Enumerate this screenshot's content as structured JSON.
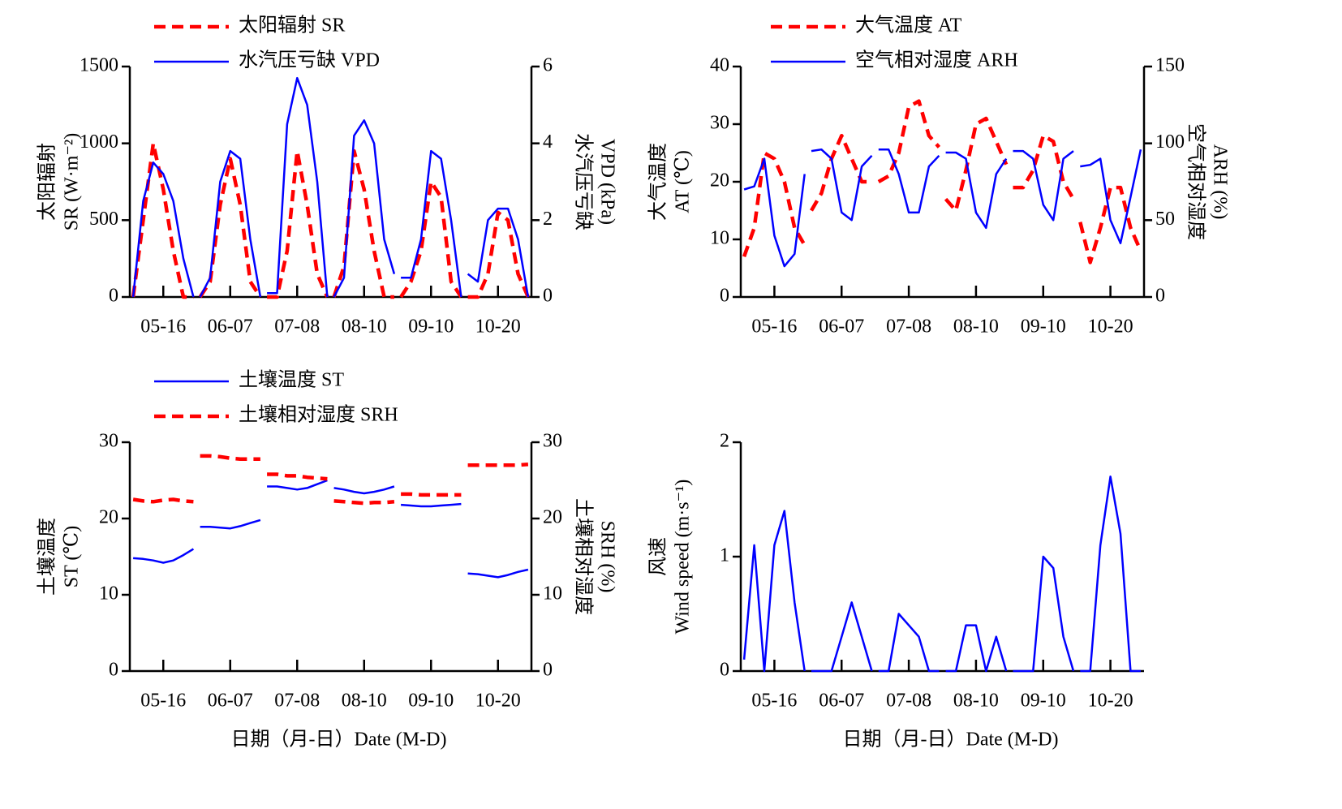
{
  "chart_data": [
    {
      "type": "line",
      "ylabel": [
        "太阳辐射",
        "SR (W·m⁻²)"
      ],
      "y2label": [
        "水汽压亏缺",
        "VPD (kPa)"
      ],
      "xlim": [
        0,
        6
      ],
      "xticks": [
        {
          "value": 0.5,
          "label": "05-16"
        },
        {
          "value": 1.5,
          "label": "06-07"
        },
        {
          "value": 2.5,
          "label": "07-08"
        },
        {
          "value": 3.5,
          "label": "08-10"
        },
        {
          "value": 4.5,
          "label": "09-10"
        },
        {
          "value": 5.5,
          "label": "10-20"
        }
      ],
      "ylim": [
        0,
        1500
      ],
      "yticks": [
        0,
        500,
        1000,
        1500
      ],
      "y2lim": [
        0,
        6
      ],
      "y2ticks": [
        0,
        2,
        4,
        6
      ],
      "x": [
        0.05,
        0.2,
        0.35,
        0.5,
        0.65,
        0.8,
        0.95,
        1,
        1.05,
        1.2,
        1.35,
        1.5,
        1.65,
        1.8,
        1.95,
        2,
        2.05,
        2.2,
        2.35,
        2.5,
        2.65,
        2.8,
        2.95,
        3,
        3.05,
        3.2,
        3.35,
        3.5,
        3.65,
        3.8,
        3.95,
        4,
        4.05,
        4.2,
        4.35,
        4.5,
        4.65,
        4.8,
        4.95,
        5,
        5.05,
        5.2,
        5.35,
        5.5,
        5.65,
        5.8,
        5.95,
        6
      ],
      "series": [
        {
          "name": "太阳辐射 SR",
          "color": "#ff0000",
          "line_style": "dashed",
          "axis": "y",
          "values": [
            0,
            500,
            1000,
            700,
            300,
            0,
            0,
            null,
            0,
            100,
            600,
            900,
            600,
            100,
            0,
            null,
            0,
            0,
            300,
            950,
            600,
            150,
            0,
            null,
            0,
            200,
            950,
            700,
            300,
            0,
            0,
            null,
            0,
            100,
            300,
            750,
            650,
            100,
            0,
            null,
            0,
            0,
            150,
            550,
            500,
            150,
            0,
            null
          ]
        },
        {
          "name": "水汽压亏缺 VPD",
          "color": "#0000ff",
          "line_style": "solid",
          "axis": "y2",
          "values": [
            0,
            2.5,
            3.5,
            3.2,
            2.5,
            1,
            0,
            null,
            0,
            0.5,
            3,
            3.8,
            3.6,
            1.5,
            0,
            null,
            0.1,
            0.1,
            4.5,
            5.7,
            5,
            3,
            0,
            null,
            0,
            0.5,
            4.2,
            4.6,
            4,
            1.5,
            0.6,
            null,
            0.5,
            0.5,
            1.5,
            3.8,
            3.6,
            2,
            0,
            null,
            0.6,
            0.4,
            2,
            2.3,
            2.3,
            1.5,
            0,
            null
          ]
        }
      ]
    },
    {
      "type": "line",
      "ylabel": [
        "大气温度",
        "AT (℃)"
      ],
      "y2label": [
        "空气相对湿度",
        "ARH (%)"
      ],
      "xlim": [
        0,
        6
      ],
      "xticks": [
        {
          "value": 0.5,
          "label": "05-16"
        },
        {
          "value": 1.5,
          "label": "06-07"
        },
        {
          "value": 2.5,
          "label": "07-08"
        },
        {
          "value": 3.5,
          "label": "08-10"
        },
        {
          "value": 4.5,
          "label": "09-10"
        },
        {
          "value": 5.5,
          "label": "10-20"
        }
      ],
      "ylim": [
        0,
        40
      ],
      "yticks": [
        0,
        10,
        20,
        30,
        40
      ],
      "y2lim": [
        0,
        150
      ],
      "y2ticks": [
        0,
        50,
        100,
        150
      ],
      "x": [
        0.05,
        0.2,
        0.35,
        0.5,
        0.65,
        0.8,
        0.95,
        1,
        1.05,
        1.2,
        1.35,
        1.5,
        1.65,
        1.8,
        1.95,
        2,
        2.05,
        2.2,
        2.35,
        2.5,
        2.65,
        2.8,
        2.95,
        3,
        3.05,
        3.2,
        3.35,
        3.5,
        3.65,
        3.8,
        3.95,
        4,
        4.05,
        4.2,
        4.35,
        4.5,
        4.65,
        4.8,
        4.95,
        5,
        5.05,
        5.2,
        5.35,
        5.5,
        5.65,
        5.8,
        5.95,
        6
      ],
      "series": [
        {
          "name": "大气温度 AT",
          "color": "#ff0000",
          "line_style": "dashed",
          "axis": "y",
          "values": [
            7,
            12,
            25,
            24,
            20,
            12,
            9,
            null,
            15,
            18,
            24,
            28,
            24,
            20,
            20,
            null,
            20,
            21,
            25,
            33,
            34,
            28,
            26,
            null,
            17,
            15,
            22,
            30,
            31,
            27,
            23,
            null,
            19,
            19,
            22,
            28,
            27,
            20,
            17,
            null,
            13,
            6,
            12,
            19,
            19,
            12,
            8,
            null
          ]
        },
        {
          "name": "空气相对湿度 ARH",
          "color": "#0000ff",
          "line_style": "solid",
          "axis": "y2",
          "values": [
            70,
            72,
            90,
            40,
            20,
            28,
            80,
            null,
            95,
            96,
            90,
            55,
            50,
            85,
            92,
            null,
            96,
            96,
            80,
            55,
            55,
            85,
            92,
            null,
            94,
            94,
            90,
            55,
            45,
            80,
            90,
            null,
            95,
            95,
            90,
            60,
            50,
            90,
            95,
            null,
            85,
            86,
            90,
            50,
            35,
            65,
            96,
            null
          ]
        }
      ]
    },
    {
      "type": "line",
      "ylabel": [
        "土壤温度",
        "ST (℃)"
      ],
      "y2label": [
        "土壤相对湿度",
        "SRH (%)"
      ],
      "xlabel": "日期（月-日）Date (M-D)",
      "xlim": [
        0,
        6
      ],
      "xticks": [
        {
          "value": 0.5,
          "label": "05-16"
        },
        {
          "value": 1.5,
          "label": "06-07"
        },
        {
          "value": 2.5,
          "label": "07-08"
        },
        {
          "value": 3.5,
          "label": "08-10"
        },
        {
          "value": 4.5,
          "label": "09-10"
        },
        {
          "value": 5.5,
          "label": "10-20"
        }
      ],
      "ylim": [
        0,
        30
      ],
      "yticks": [
        0,
        10,
        20,
        30
      ],
      "y2lim": [
        0,
        30
      ],
      "y2ticks": [
        0,
        10,
        20,
        30
      ],
      "x": [
        0.05,
        0.2,
        0.35,
        0.5,
        0.65,
        0.8,
        0.95,
        1,
        1.05,
        1.2,
        1.35,
        1.5,
        1.65,
        1.8,
        1.95,
        2,
        2.05,
        2.2,
        2.35,
        2.5,
        2.65,
        2.8,
        2.95,
        3,
        3.05,
        3.2,
        3.35,
        3.5,
        3.65,
        3.8,
        3.95,
        4,
        4.05,
        4.2,
        4.35,
        4.5,
        4.65,
        4.8,
        4.95,
        5,
        5.05,
        5.2,
        5.35,
        5.5,
        5.65,
        5.8,
        5.95,
        6
      ],
      "series": [
        {
          "name": "土壤温度 ST",
          "color": "#0000ff",
          "line_style": "solid",
          "axis": "y",
          "values": [
            14.8,
            14.7,
            14.5,
            14.2,
            14.5,
            15.2,
            16,
            null,
            18.9,
            18.9,
            18.8,
            18.7,
            19,
            19.4,
            19.8,
            null,
            24.2,
            24.2,
            24,
            23.8,
            24,
            24.5,
            25,
            null,
            24,
            23.8,
            23.5,
            23.3,
            23.5,
            23.8,
            24.2,
            null,
            21.8,
            21.7,
            21.6,
            21.6,
            21.7,
            21.8,
            21.9,
            null,
            12.8,
            12.7,
            12.5,
            12.3,
            12.6,
            13,
            13.3,
            null
          ]
        },
        {
          "name": "土壤相对湿度 SRH",
          "color": "#ff0000",
          "line_style": "dashed",
          "axis": "y2",
          "values": [
            22.5,
            22.3,
            22.2,
            22.4,
            22.5,
            22.3,
            22.2,
            null,
            28.2,
            28.2,
            28.1,
            27.9,
            27.8,
            27.8,
            27.8,
            null,
            25.8,
            25.8,
            25.6,
            25.6,
            25.4,
            25.3,
            25.2,
            null,
            22.3,
            22.2,
            22.1,
            22,
            22.1,
            22.1,
            22.2,
            null,
            23.2,
            23.2,
            23.1,
            23.1,
            23.1,
            23.1,
            23.1,
            null,
            27,
            27,
            27,
            27,
            27,
            27,
            27.1,
            null
          ]
        }
      ]
    },
    {
      "type": "line",
      "ylabel": [
        "风速",
        "Wind speed (m·s⁻¹)"
      ],
      "xlabel": "日期（月-日）Date (M-D)",
      "xlim": [
        0,
        6
      ],
      "xticks": [
        {
          "value": 0.5,
          "label": "05-16"
        },
        {
          "value": 1.5,
          "label": "06-07"
        },
        {
          "value": 2.5,
          "label": "07-08"
        },
        {
          "value": 3.5,
          "label": "08-10"
        },
        {
          "value": 4.5,
          "label": "09-10"
        },
        {
          "value": 5.5,
          "label": "10-20"
        }
      ],
      "ylim": [
        0,
        2
      ],
      "yticks": [
        0,
        1,
        2
      ],
      "x": [
        0.05,
        0.2,
        0.35,
        0.5,
        0.65,
        0.8,
        0.95,
        1,
        1.05,
        1.2,
        1.35,
        1.5,
        1.65,
        1.8,
        1.95,
        2,
        2.05,
        2.2,
        2.35,
        2.5,
        2.65,
        2.8,
        2.95,
        3,
        3.05,
        3.2,
        3.35,
        3.5,
        3.65,
        3.8,
        3.95,
        4,
        4.05,
        4.2,
        4.35,
        4.5,
        4.65,
        4.8,
        4.95,
        5,
        5.05,
        5.2,
        5.35,
        5.5,
        5.65,
        5.8,
        5.95,
        6
      ],
      "series": [
        {
          "color": "#0000ff",
          "line_style": "solid",
          "axis": "y",
          "values": [
            0.1,
            1.1,
            0,
            1.1,
            1.4,
            0.6,
            0,
            null,
            0,
            0,
            0,
            0.3,
            0.6,
            0.3,
            0,
            null,
            0,
            0,
            0.5,
            0.4,
            0.3,
            0,
            0,
            null,
            0,
            0,
            0.4,
            0.4,
            0,
            0.3,
            0,
            null,
            0,
            0,
            0,
            1,
            0.9,
            0.3,
            0,
            null,
            0,
            0,
            1.1,
            1.7,
            1.2,
            0,
            0,
            null
          ]
        }
      ]
    }
  ]
}
